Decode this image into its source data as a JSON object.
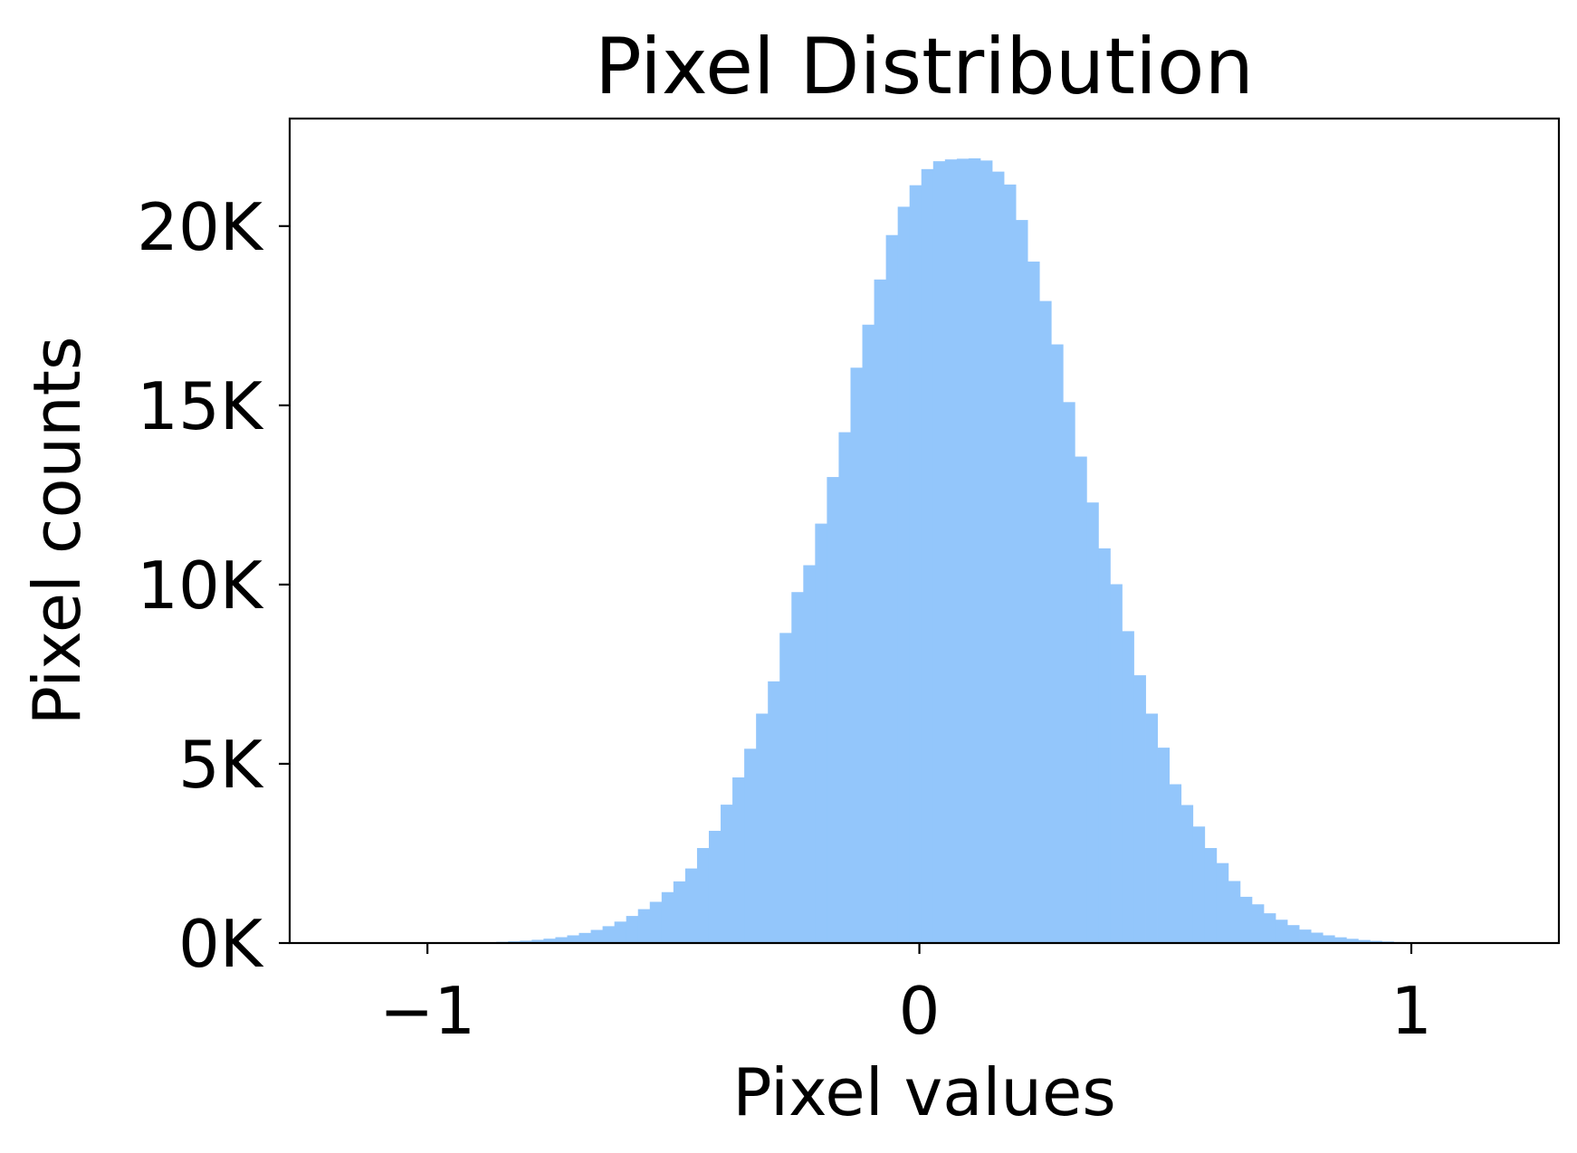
{
  "chart_data": {
    "type": "bar",
    "subtype": "histogram",
    "title": "Pixel Distribution",
    "xlabel": "Pixel values",
    "ylabel": "Pixel counts",
    "xlim": [
      -1.28,
      1.3
    ],
    "ylim": [
      0,
      23000
    ],
    "x_ticks": [
      {
        "value": -1,
        "label": "−1"
      },
      {
        "value": 0,
        "label": "0"
      },
      {
        "value": 1,
        "label": "1"
      }
    ],
    "y_ticks": [
      {
        "value": 0,
        "label": "0K"
      },
      {
        "value": 5000,
        "label": "5K"
      },
      {
        "value": 10000,
        "label": "10K"
      },
      {
        "value": 15000,
        "label": "15K"
      },
      {
        "value": 20000,
        "label": "20K"
      }
    ],
    "bar_color": "#93c6fb",
    "grid": false,
    "bin_start": -0.98,
    "bin_width": 0.024,
    "values": [
      5,
      8,
      12,
      17,
      24,
      34,
      48,
      66,
      90,
      122,
      163,
      215,
      282,
      366,
      470,
      598,
      755,
      945,
      1150,
      1420,
      1720,
      2080,
      2650,
      3130,
      3860,
      4620,
      5420,
      6400,
      7300,
      8650,
      9790,
      10540,
      11700,
      13000,
      14250,
      16050,
      17250,
      18510,
      19750,
      20540,
      21140,
      21590,
      21810,
      21860,
      21880,
      21890,
      21830,
      21520,
      21160,
      20170,
      19010,
      17910,
      16700,
      15090,
      13570,
      12290,
      11010,
      10010,
      8700,
      7470,
      6400,
      5450,
      4430,
      3850,
      3250,
      2650,
      2230,
      1730,
      1290,
      1080,
      830,
      650,
      500,
      375,
      290,
      215,
      160,
      118,
      85,
      60,
      42,
      28,
      18,
      11,
      6
    ]
  }
}
